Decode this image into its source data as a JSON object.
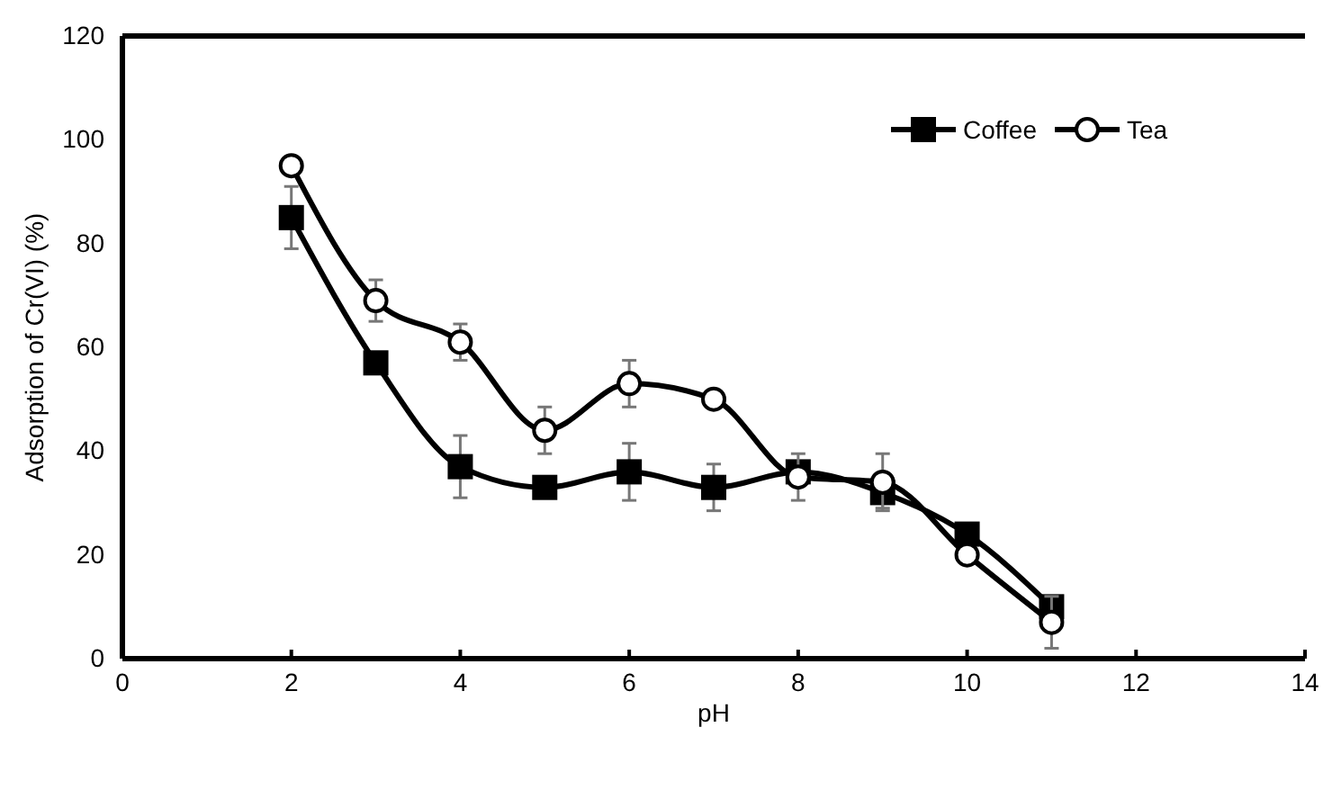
{
  "chart_data": {
    "type": "line",
    "xlabel": "pH",
    "ylabel": "Adsorption of Cr(VI) (%)",
    "x": [
      2,
      3,
      4,
      5,
      6,
      7,
      8,
      9,
      10,
      11
    ],
    "series": [
      {
        "name": "Coffee",
        "color": "#000000",
        "marker": "square",
        "values": [
          85,
          57,
          37,
          33,
          36,
          33,
          36,
          32,
          24,
          10
        ],
        "errors": [
          6,
          null,
          6,
          2,
          5.5,
          4.5,
          null,
          3,
          null,
          null
        ]
      },
      {
        "name": "Tea",
        "color": "#000000",
        "marker": "circle",
        "values": [
          95,
          69,
          61,
          44,
          53,
          50,
          35,
          34,
          20,
          7
        ],
        "errors": [
          null,
          4,
          3.5,
          4.5,
          4.5,
          null,
          4.5,
          5.5,
          null,
          5
        ]
      }
    ],
    "xlim": [
      0,
      14
    ],
    "xticks": [
      0,
      2,
      4,
      6,
      8,
      10,
      12,
      14
    ],
    "ylim": [
      0,
      120
    ],
    "yticks": [
      0,
      20,
      40,
      60,
      80,
      100,
      120
    ],
    "grid": false,
    "legend": "top right",
    "line_style": "solid"
  }
}
